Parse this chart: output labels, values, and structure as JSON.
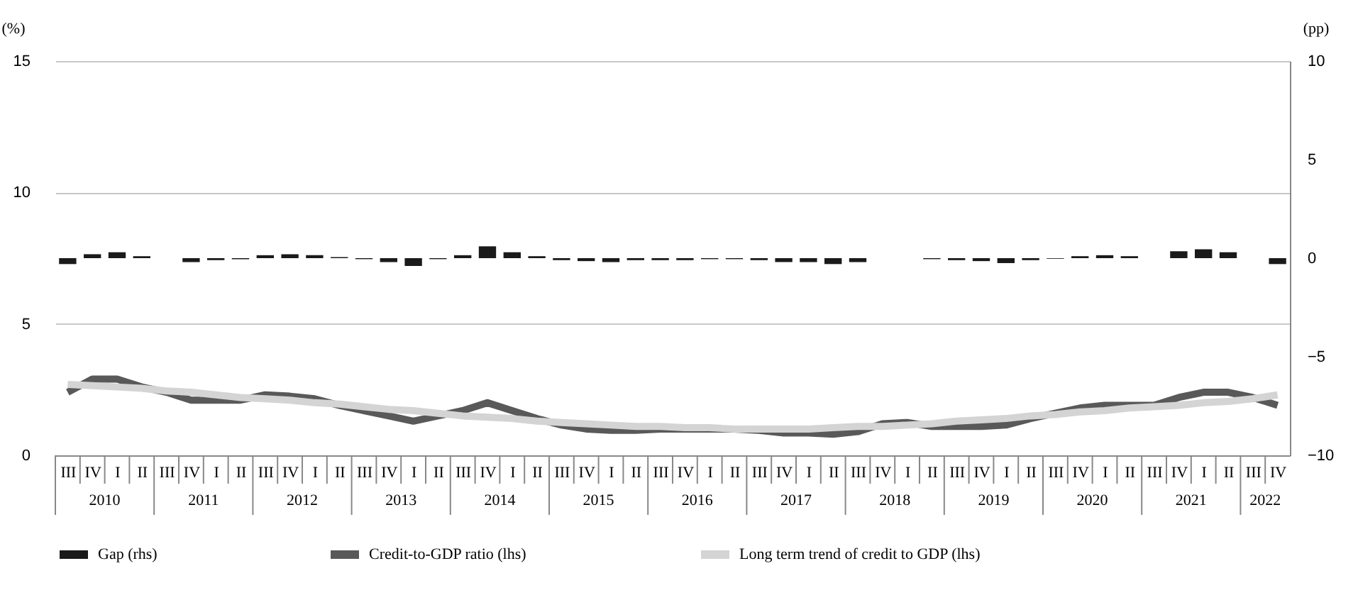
{
  "chart_data": {
    "type": "line",
    "ylabel": "(%)",
    "y2label": "(pp)",
    "categories": [
      "III",
      "IV",
      "I",
      "II",
      "III",
      "IV",
      "I",
      "II",
      "III",
      "IV",
      "I",
      "II",
      "III",
      "IV",
      "I",
      "II",
      "III",
      "IV",
      "I",
      "II",
      "III",
      "IV",
      "I",
      "II",
      "III",
      "IV",
      "I",
      "II",
      "III",
      "IV",
      "I",
      "II",
      "III",
      "IV",
      "I",
      "II",
      "III",
      "IV",
      "I",
      "II",
      "III",
      "IV",
      "I",
      "II",
      "III",
      "IV",
      "I",
      "II",
      "III",
      "IV"
    ],
    "annotations": [
      "2010",
      "2011",
      "2012",
      "2013",
      "2014",
      "2015",
      "2016",
      "2017",
      "2018",
      "2019",
      "2020",
      "2021",
      "2022"
    ],
    "series": [
      {
        "name": "Gap (rhs)",
        "type": "bar",
        "axis": "y2",
        "color": "#1a1a1a",
        "values": [
          -0.3,
          0.2,
          0.3,
          0.1,
          0.0,
          -0.2,
          -0.1,
          -0.05,
          0.15,
          0.2,
          0.15,
          0.05,
          -0.05,
          -0.2,
          -0.4,
          -0.05,
          0.15,
          0.6,
          0.3,
          0.1,
          -0.1,
          -0.15,
          -0.2,
          -0.1,
          -0.1,
          -0.1,
          -0.05,
          -0.05,
          -0.1,
          -0.2,
          -0.2,
          -0.3,
          -0.2,
          0.0,
          0.0,
          -0.05,
          -0.1,
          -0.15,
          -0.25,
          -0.1,
          -0.03,
          0.1,
          0.15,
          0.1,
          0.0,
          0.35,
          0.45,
          0.3,
          0.0,
          -0.3
        ]
      },
      {
        "name": "Credit-to-GDP ratio (lhs)",
        "color": "#595959",
        "values": [
          2.4,
          2.9,
          2.9,
          2.6,
          2.4,
          2.1,
          2.1,
          2.1,
          2.3,
          2.25,
          2.15,
          1.9,
          1.7,
          1.5,
          1.3,
          1.5,
          1.7,
          2.0,
          1.7,
          1.4,
          1.15,
          1.0,
          0.95,
          0.95,
          1.0,
          1.0,
          1.0,
          1.0,
          0.95,
          0.85,
          0.85,
          0.8,
          0.9,
          1.2,
          1.25,
          1.1,
          1.1,
          1.1,
          1.15,
          1.4,
          1.6,
          1.8,
          1.9,
          1.9,
          1.9,
          2.2,
          2.4,
          2.4,
          2.2,
          1.9
        ]
      },
      {
        "name": "Long term trend of credit to GDP (lhs)",
        "color": "#d4d4d4",
        "values": [
          2.7,
          2.65,
          2.6,
          2.55,
          2.45,
          2.4,
          2.3,
          2.2,
          2.15,
          2.1,
          2.0,
          1.95,
          1.85,
          1.75,
          1.7,
          1.6,
          1.5,
          1.45,
          1.4,
          1.3,
          1.25,
          1.2,
          1.15,
          1.1,
          1.1,
          1.05,
          1.05,
          1.0,
          1.0,
          1.0,
          1.0,
          1.05,
          1.1,
          1.1,
          1.15,
          1.2,
          1.3,
          1.35,
          1.4,
          1.5,
          1.55,
          1.65,
          1.7,
          1.8,
          1.85,
          1.9,
          2.0,
          2.05,
          2.15,
          2.3
        ]
      }
    ],
    "ylim": [
      0,
      15
    ],
    "yticks": [
      0,
      5,
      10,
      15
    ],
    "y2lim": [
      -10,
      10
    ],
    "y2ticks": [
      -10,
      -5,
      0,
      5,
      10
    ],
    "grid": "y",
    "legend": "bottom",
    "marker": "none",
    "line_style": "solid"
  }
}
